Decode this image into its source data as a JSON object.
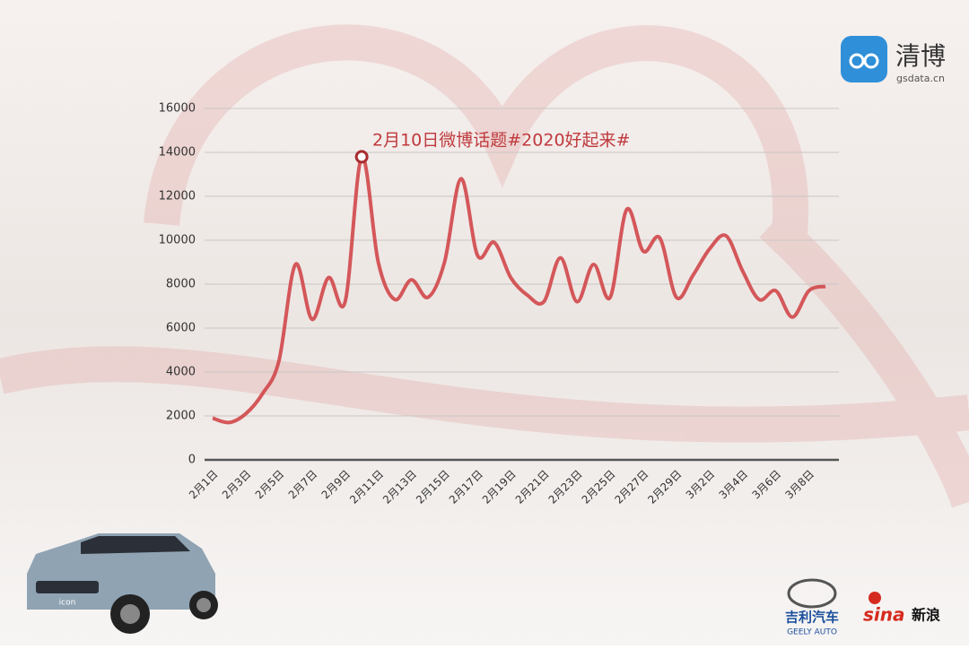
{
  "chart_data": {
    "type": "line",
    "annotation": "2月10日微博话题#2020好起来#",
    "categories": [
      "2月1日",
      null,
      "2月3日",
      null,
      "2月5日",
      null,
      "2月7日",
      null,
      "2月9日",
      null,
      "2月11日",
      null,
      "2月13日",
      null,
      "2月15日",
      null,
      "2月17日",
      null,
      "2月19日",
      null,
      "2月21日",
      null,
      "2月23日",
      null,
      "2月25日",
      null,
      "2月27日",
      null,
      "2月29日",
      null,
      "3月2日",
      null,
      "3月4日",
      null,
      "3月6日",
      null,
      "3月8日",
      null
    ],
    "values": [
      1900,
      1700,
      2100,
      3000,
      4500,
      8900,
      6400,
      8300,
      7200,
      13800,
      9000,
      7300,
      8200,
      7400,
      9000,
      12800,
      9300,
      9900,
      8300,
      7500,
      7200,
      9200,
      7200,
      8900,
      7400,
      11400,
      9500,
      10100,
      7400,
      8400,
      9600,
      10200,
      8600,
      7300,
      7700,
      6500,
      7700,
      7900
    ],
    "color": "#d0474a",
    "ylim": [
      0,
      16000
    ],
    "yticks": [
      0,
      2000,
      4000,
      6000,
      8000,
      10000,
      12000,
      14000,
      16000
    ],
    "grid": true
  },
  "logos": {
    "gsdata_name": "清博",
    "gsdata_url": "gsdata.cn",
    "geely_cn": "吉利汽车",
    "geely_en": "GEELY AUTO",
    "sina_en": "sina",
    "sina_cn": "新浪",
    "car_badge": "icon"
  }
}
